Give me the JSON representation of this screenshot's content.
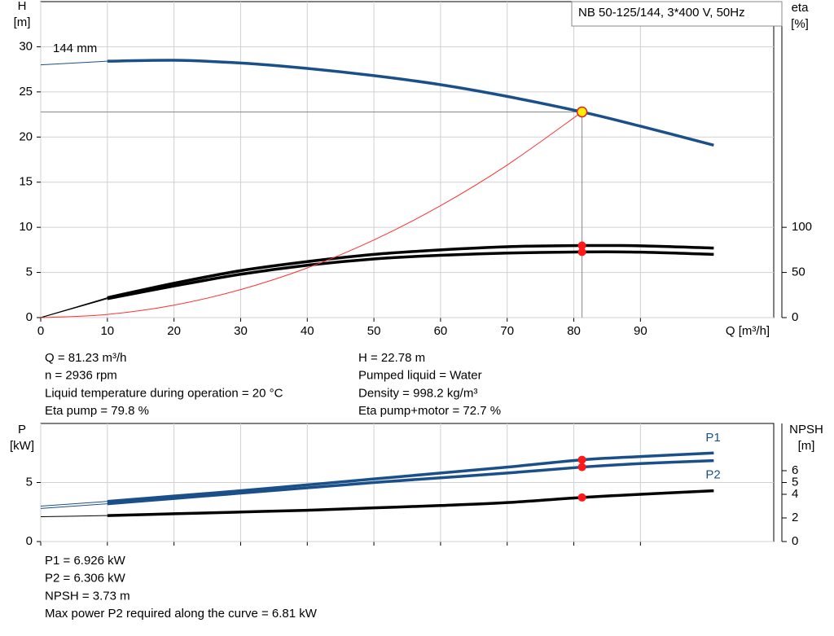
{
  "chart_data": [
    {
      "type": "line",
      "title": "NB 50-125/144, 3*400 V, 50Hz",
      "y_label": "H",
      "y_unit": "[m]",
      "y2_label": "eta",
      "y2_unit": "[%]",
      "x_label": "Q [m³/h]",
      "annotation": "144 mm",
      "xlim": [
        0,
        110
      ],
      "xticks": [
        0,
        10,
        20,
        30,
        40,
        50,
        60,
        70,
        80,
        90
      ],
      "show_xtick_labels": true,
      "ylim": [
        0,
        35
      ],
      "yticks": [
        0,
        5,
        10,
        15,
        20,
        25,
        30
      ],
      "y2lim": [
        0,
        350
      ],
      "y2ticks": [
        0,
        50,
        100
      ],
      "grid": true,
      "duty_point": {
        "x": 81.23,
        "y": 22.78
      },
      "series": [
        {
          "color": "#1a4f8a",
          "axis": "y",
          "x": [
            0,
            10,
            20,
            30,
            40,
            50,
            60,
            70,
            81.23,
            90,
            101
          ],
          "values": [
            28,
            28.4,
            28.5,
            28.2,
            27.6,
            26.8,
            25.8,
            24.5,
            22.78,
            21.2,
            19.1
          ]
        },
        {
          "color": "#000000",
          "axis": "y2",
          "duty_marker": "#ff1a1a",
          "x": [
            0,
            10,
            20,
            30,
            40,
            50,
            60,
            70,
            81.23,
            90,
            101
          ],
          "values": [
            0,
            22,
            38,
            52,
            62,
            70,
            75,
            78.5,
            79.8,
            79.5,
            77
          ]
        },
        {
          "color": "#000000",
          "axis": "y2",
          "duty_marker": "#ff1a1a",
          "x": [
            0,
            10,
            20,
            30,
            40,
            50,
            60,
            70,
            81.23,
            90,
            101
          ],
          "values": [
            0,
            21,
            35,
            48,
            58,
            65,
            69,
            71.5,
            72.7,
            72.5,
            70
          ]
        },
        {
          "color": "#ff3030",
          "axis": "y",
          "linestyle": "thin",
          "x": [
            0,
            10,
            20,
            30,
            40,
            50,
            60,
            70,
            81.23
          ],
          "values": [
            0,
            0.35,
            1.38,
            3.1,
            5.5,
            8.6,
            12.4,
            16.9,
            22.78
          ]
        }
      ],
      "info": [
        [
          "Q = 81.23 m³/h",
          "n = 2936 rpm",
          "Liquid temperature during operation = 20 °C",
          "Eta pump = 79.8 %"
        ],
        [
          "H = 22.78 m",
          "Pumped liquid = Water",
          "Density = 998.2 kg/m³",
          "Eta pump+motor = 72.7 %"
        ]
      ]
    },
    {
      "type": "line",
      "y_label": "P",
      "y_unit": "[kW]",
      "y2_label": "NPSH",
      "y2_unit": "[m]",
      "xlim": [
        0,
        110
      ],
      "xticks": [
        0,
        10,
        20,
        30,
        40,
        50,
        60,
        70,
        80,
        90
      ],
      "show_xtick_labels": false,
      "ylim": [
        0,
        10
      ],
      "yticks": [
        0,
        5
      ],
      "y2lim": [
        0,
        10
      ],
      "y2ticks": [
        0,
        2,
        4,
        5,
        6
      ],
      "grid": true,
      "duty_x": 81.23,
      "series": [
        {
          "name": "P1",
          "color": "#1a4f8a",
          "axis": "y",
          "duty_marker": "#ff1a1a",
          "x": [
            0,
            10,
            20,
            30,
            40,
            50,
            60,
            70,
            81.23,
            90,
            101
          ],
          "values": [
            3.0,
            3.4,
            3.85,
            4.3,
            4.8,
            5.3,
            5.8,
            6.3,
            6.926,
            7.2,
            7.5
          ]
        },
        {
          "name": "P2",
          "color": "#1a4f8a",
          "axis": "y",
          "duty_marker": "#ff1a1a",
          "x": [
            0,
            10,
            20,
            30,
            40,
            50,
            60,
            70,
            81.23,
            90,
            101
          ],
          "values": [
            2.8,
            3.2,
            3.65,
            4.1,
            4.55,
            5.0,
            5.4,
            5.8,
            6.306,
            6.6,
            6.85
          ]
        },
        {
          "color": "#000000",
          "axis": "y2",
          "duty_marker": "#ff1a1a",
          "x": [
            0,
            10,
            20,
            30,
            40,
            50,
            60,
            70,
            81.23,
            90,
            101
          ],
          "values": [
            2.1,
            2.2,
            2.35,
            2.5,
            2.65,
            2.85,
            3.05,
            3.3,
            3.73,
            4.0,
            4.3
          ]
        }
      ],
      "info": [
        [
          "P1 = 6.926 kW",
          "P2 = 6.306 kW",
          "NPSH = 3.73 m",
          "Max power P2 required along the curve = 6.81 kW"
        ]
      ]
    }
  ]
}
